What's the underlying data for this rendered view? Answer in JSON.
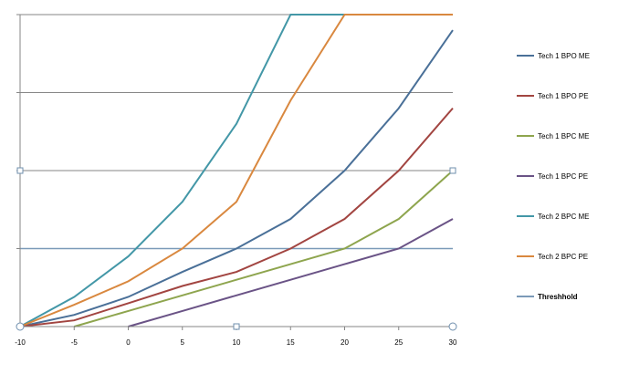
{
  "chart_data": {
    "type": "line",
    "title": "",
    "xlabel": "",
    "ylabel": "",
    "x": [
      -10,
      -5,
      0,
      5,
      10,
      15,
      20,
      25,
      30
    ],
    "xlim": [
      -10,
      30
    ],
    "ylim": [
      0,
      4
    ],
    "x_tick_labels": [
      "-10",
      "-5",
      "0",
      "5",
      "10",
      "15",
      "20",
      "25",
      "30"
    ],
    "y_tick_labels": [],
    "grid": "horizontal",
    "legend_position": "right",
    "series": [
      {
        "name": "Tech 1 BPO ME",
        "color": "#4a7098",
        "values": [
          0,
          0.15,
          0.38,
          0.7,
          1.0,
          1.38,
          2.0,
          2.8,
          3.8
        ]
      },
      {
        "name": "Tech 1 BPO PE",
        "color": "#a24541",
        "values": [
          0,
          0.08,
          0.3,
          0.52,
          0.7,
          1.0,
          1.38,
          2.0,
          2.8
        ]
      },
      {
        "name": "Tech 1 BPC ME",
        "color": "#8ea54e",
        "values": [
          null,
          0,
          0.2,
          0.4,
          0.6,
          0.8,
          1.0,
          1.38,
          2.0
        ]
      },
      {
        "name": "Tech 1 BPC PE",
        "color": "#6a5386",
        "values": [
          null,
          null,
          0,
          0.2,
          0.4,
          0.6,
          0.8,
          1.0,
          1.38
        ]
      },
      {
        "name": "Tech 2 BPC ME",
        "color": "#4397a7",
        "values": [
          0,
          0.38,
          0.9,
          1.6,
          2.6,
          4.0,
          4.0,
          4.0,
          4.0
        ]
      },
      {
        "name": "Tech 2 BPC PE",
        "color": "#d9883f",
        "values": [
          0,
          0.28,
          0.58,
          1.0,
          1.6,
          2.9,
          4.0,
          4.0,
          4.0
        ]
      }
    ],
    "reference_lines": [
      {
        "name": "Threshhold",
        "color": "#7b9ab8",
        "label_color": "#cc0000",
        "y": 1.0
      }
    ]
  }
}
